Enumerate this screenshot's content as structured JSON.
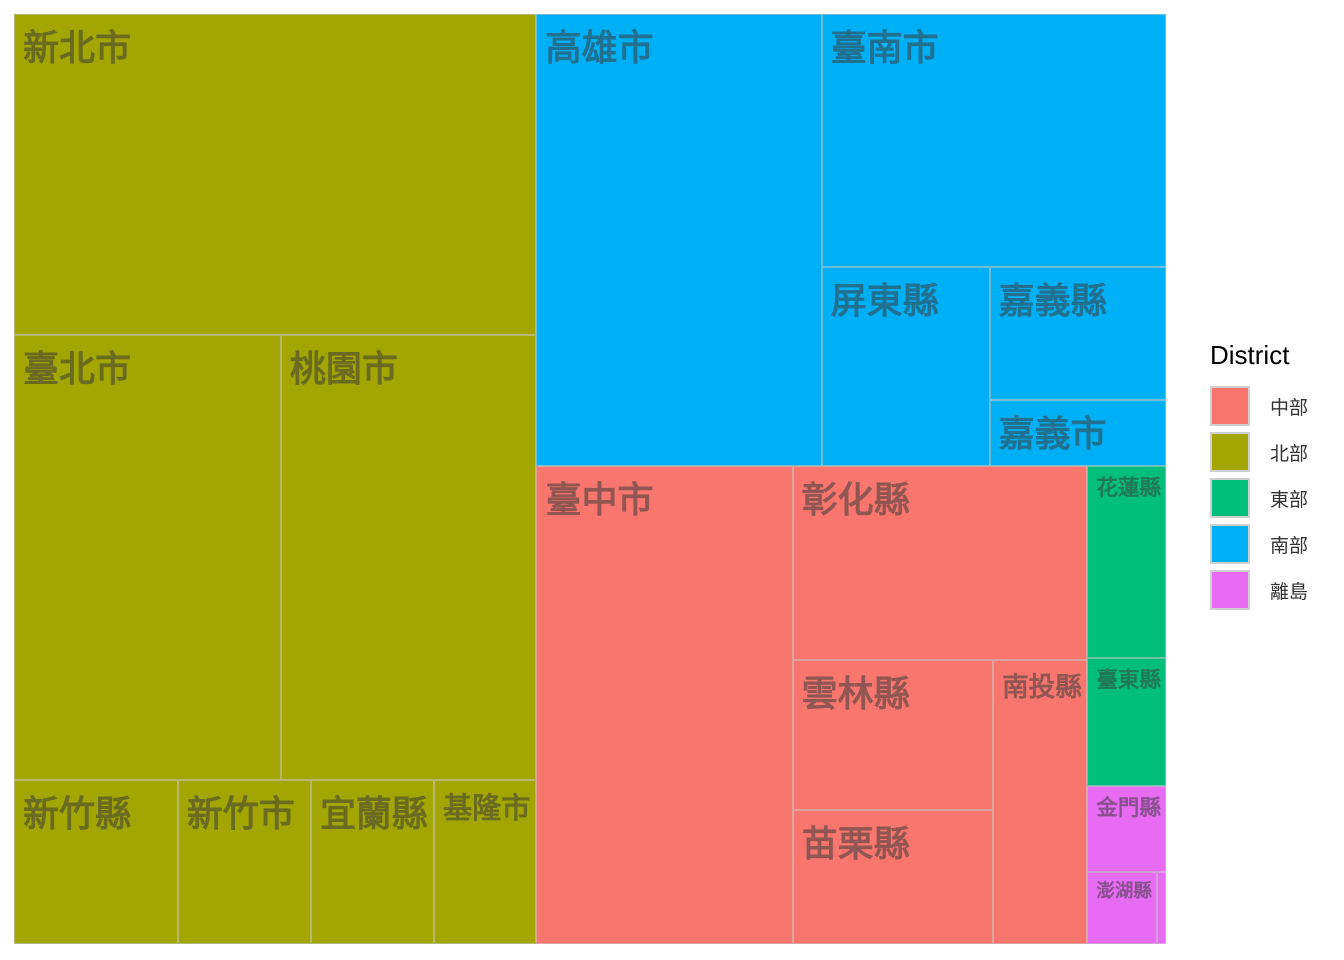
{
  "chart_data": {
    "type": "treemap",
    "title": "",
    "legend": {
      "title": "District",
      "placement": "right",
      "entries": [
        {
          "name": "中部",
          "color": "#F8766D"
        },
        {
          "name": "北部",
          "color": "#A3A500"
        },
        {
          "name": "東部",
          "color": "#00BF7D"
        },
        {
          "name": "南部",
          "color": "#00B0F6"
        },
        {
          "name": "離島",
          "color": "#E76BF3"
        }
      ]
    },
    "groups": [
      {
        "district": "北部",
        "items": [
          {
            "label": "新北市",
            "value": 100
          },
          {
            "label": "臺北市",
            "value": 71
          },
          {
            "label": "桃園市",
            "value": 68
          },
          {
            "label": "新竹縣",
            "value": 16
          },
          {
            "label": "新竹市",
            "value": 13
          },
          {
            "label": "宜蘭縣",
            "value": 12
          },
          {
            "label": "基隆市",
            "value": 10
          }
        ]
      },
      {
        "district": "南部",
        "items": [
          {
            "label": "高雄市",
            "value": 77
          },
          {
            "label": "臺南市",
            "value": 52
          },
          {
            "label": "屏東縣",
            "value": 20
          },
          {
            "label": "嘉義縣",
            "value": 14
          },
          {
            "label": "嘉義市",
            "value": 7
          }
        ]
      },
      {
        "district": "中部",
        "items": [
          {
            "label": "臺中市",
            "value": 73
          },
          {
            "label": "彰化縣",
            "value": 34
          },
          {
            "label": "雲林縣",
            "value": 18
          },
          {
            "label": "苗栗縣",
            "value": 16
          },
          {
            "label": "南投縣",
            "value": 16
          }
        ]
      },
      {
        "district": "東部",
        "items": [
          {
            "label": "花蓮縣",
            "value": 9
          },
          {
            "label": "臺東縣",
            "value": 6
          }
        ]
      },
      {
        "district": "離島",
        "items": [
          {
            "label": "金門縣",
            "value": 4
          },
          {
            "label": "澎湖縣",
            "value": 3
          },
          {
            "label": "",
            "value": 0.4
          }
        ]
      }
    ]
  }
}
